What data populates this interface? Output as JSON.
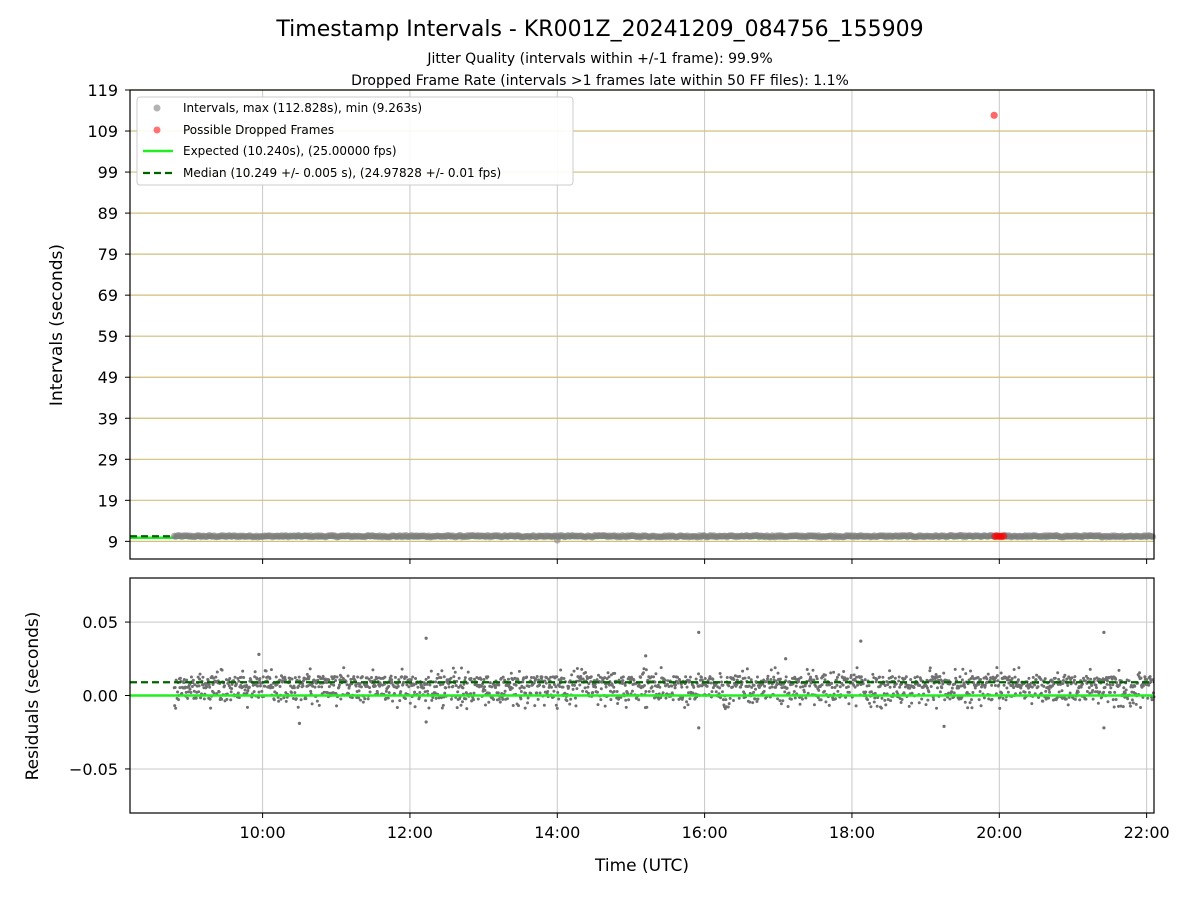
{
  "title": "Timestamp Intervals - KR001Z_20241209_084756_155909",
  "subtitle_lines": [
    "Jitter Quality (intervals within +/-1 frame): 99.9%",
    "Dropped Frame Rate (intervals >1 frames late within 50 FF files): 1.1%"
  ],
  "colors": {
    "intervals": "#808080",
    "dropped": "#ff0000",
    "expected": "#22ee22",
    "median": "#006400",
    "hgrid_top": "#d2bf7a",
    "grid": "#c8c8c8"
  },
  "chart_data": [
    {
      "type": "scatter",
      "panel": "top",
      "ylabel": "Intervals (seconds)",
      "xlabel": "",
      "x_unit": "time of day (UTC, hours)",
      "xlim": [
        8.2,
        22.1
      ],
      "ylim": [
        4.7,
        119
      ],
      "yticks": [
        9,
        19,
        29,
        39,
        49,
        59,
        69,
        79,
        89,
        99,
        109,
        119
      ],
      "grid": "on",
      "legend_placement": "top-left",
      "legend": [
        {
          "label": "Intervals, max (112.828s), min (9.263s)",
          "kind": "marker",
          "color": "#808080"
        },
        {
          "label": "Possible Dropped Frames",
          "kind": "marker",
          "color": "#ff0000"
        },
        {
          "label": "Expected (10.240s), (25.00000 fps)",
          "kind": "solid-line",
          "color": "#22ee22"
        },
        {
          "label": "Median (10.249 +/- 0.005 s), (24.97828 +/- 0.01 fps)",
          "kind": "dashed-line",
          "color": "#006400"
        }
      ],
      "series": [
        {
          "name": "Intervals, max (112.828s), min (9.263s)",
          "x_range": [
            8.8,
            22.1
          ],
          "y_typical": 10.25,
          "y_max": 112.828,
          "y_min": 9.263
        },
        {
          "name": "Possible Dropped Frames",
          "points": [
            {
              "x": 19.93,
              "y": 112.828
            },
            {
              "x": 19.94,
              "y": 10.24
            },
            {
              "x": 19.97,
              "y": 10.24
            },
            {
              "x": 20.0,
              "y": 10.24
            },
            {
              "x": 20.03,
              "y": 10.24
            },
            {
              "x": 20.06,
              "y": 10.24
            }
          ]
        },
        {
          "name": "Expected (10.240s), (25.00000 fps)",
          "y": 10.24
        },
        {
          "name": "Median (10.249 +/- 0.005 s), (24.97828 +/- 0.01 fps)",
          "y": 10.249
        }
      ]
    },
    {
      "type": "scatter",
      "panel": "bottom",
      "ylabel": "Residuals (seconds)",
      "xlabel": "Time (UTC)",
      "x_unit": "time of day (UTC, hours)",
      "xlim": [
        8.2,
        22.1
      ],
      "ylim": [
        -0.08,
        0.08
      ],
      "yticks": [
        0.05,
        0.0,
        -0.05
      ],
      "ytick_labels": [
        "0.05",
        "0.00",
        "−0.05"
      ],
      "xticks": [
        10,
        12,
        14,
        16,
        18,
        20,
        22
      ],
      "xtick_labels": [
        "10:00",
        "12:00",
        "14:00",
        "16:00",
        "18:00",
        "20:00",
        "22:00"
      ],
      "grid": "on",
      "series": [
        {
          "name": "residuals",
          "x_range": [
            8.8,
            22.1
          ],
          "typical_range": [
            -0.005,
            0.018
          ],
          "max": 0.043,
          "min": -0.022,
          "outliers": [
            {
              "x": 9.95,
              "y": 0.028
            },
            {
              "x": 12.22,
              "y": 0.039
            },
            {
              "x": 15.2,
              "y": 0.027
            },
            {
              "x": 15.92,
              "y": 0.043
            },
            {
              "x": 17.1,
              "y": 0.025
            },
            {
              "x": 18.12,
              "y": 0.037
            },
            {
              "x": 21.42,
              "y": 0.043
            },
            {
              "x": 15.92,
              "y": -0.022
            },
            {
              "x": 19.25,
              "y": -0.021
            },
            {
              "x": 21.42,
              "y": -0.022
            },
            {
              "x": 10.5,
              "y": -0.019
            },
            {
              "x": 12.22,
              "y": -0.018
            }
          ]
        },
        {
          "name": "Expected",
          "y": 0.0
        },
        {
          "name": "Median",
          "y": 0.009
        }
      ]
    }
  ]
}
